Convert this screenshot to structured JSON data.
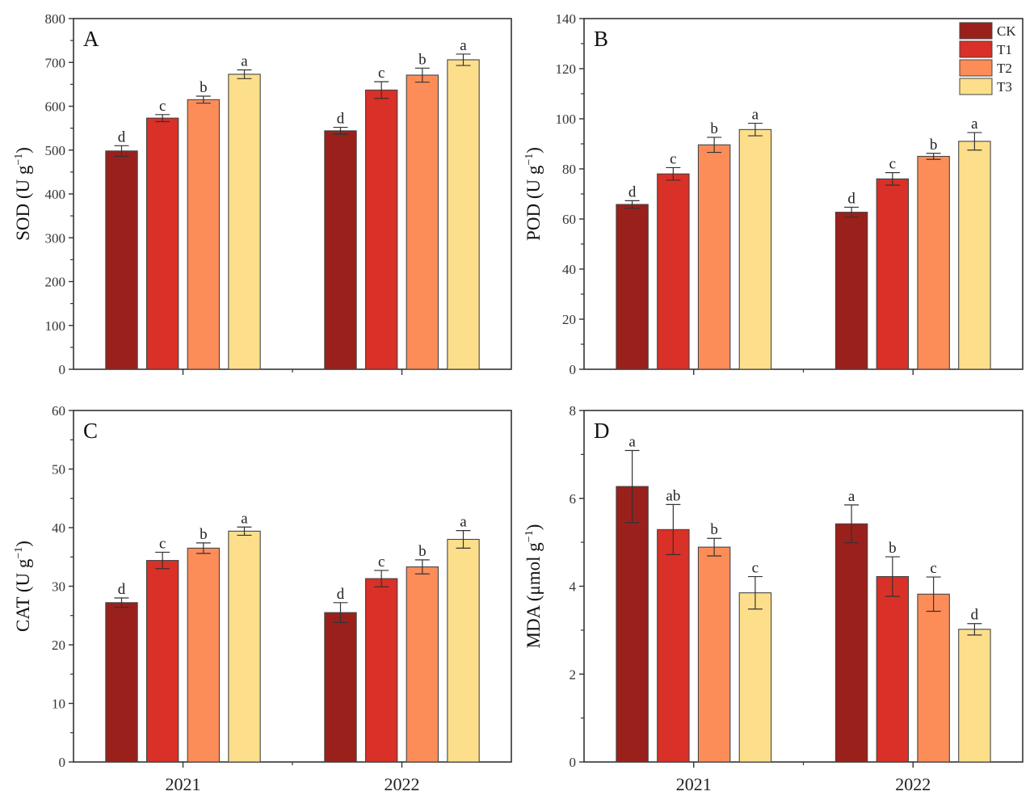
{
  "legend": {
    "entries": [
      {
        "name": "CK",
        "color": "#9a201b"
      },
      {
        "name": "T1",
        "color": "#d93027"
      },
      {
        "name": "T2",
        "color": "#fc8d59"
      },
      {
        "name": "T3",
        "color": "#fddf8b"
      }
    ],
    "placement": "top-right of panel B"
  },
  "chart_data": [
    {
      "type": "bar",
      "panel": "A",
      "title": "",
      "xlabel": "",
      "ylabel_main": "SOD (U g",
      "ylabel_sup": "−1",
      "ylabel_end": ")",
      "categories": [
        "2021",
        "2022"
      ],
      "show_x_tick_labels": false,
      "ylim": [
        0,
        800
      ],
      "y_ticks": [
        0,
        100,
        200,
        300,
        400,
        500,
        600,
        700,
        800
      ],
      "y_tick_labels": [
        "0",
        "100",
        "200",
        "300",
        "400",
        "500",
        "600",
        "700",
        "800"
      ],
      "y_minor_step": 50,
      "series": [
        {
          "name": "CK",
          "values": [
            498,
            544
          ],
          "errors": [
            12,
            8
          ],
          "letters": [
            "d",
            "d"
          ]
        },
        {
          "name": "T1",
          "values": [
            573,
            637
          ],
          "errors": [
            8,
            19
          ],
          "letters": [
            "c",
            "c"
          ]
        },
        {
          "name": "T2",
          "values": [
            615,
            671
          ],
          "errors": [
            8,
            16
          ],
          "letters": [
            "b",
            "b"
          ]
        },
        {
          "name": "T3",
          "values": [
            673,
            706
          ],
          "errors": [
            10,
            13
          ],
          "letters": [
            "a",
            "a"
          ]
        }
      ]
    },
    {
      "type": "bar",
      "panel": "B",
      "title": "",
      "xlabel": "",
      "ylabel_main": "POD (U g",
      "ylabel_sup": "−1",
      "ylabel_end": ")",
      "categories": [
        "2021",
        "2022"
      ],
      "show_x_tick_labels": false,
      "ylim": [
        0,
        140
      ],
      "y_ticks": [
        0,
        20,
        40,
        60,
        80,
        100,
        120,
        140
      ],
      "y_tick_labels": [
        "0",
        "20",
        "40",
        "60",
        "80",
        "100",
        "120",
        "140"
      ],
      "y_minor_step": 10,
      "series": [
        {
          "name": "CK",
          "values": [
            65.8,
            62.7
          ],
          "errors": [
            1.5,
            2.0
          ],
          "letters": [
            "d",
            "d"
          ]
        },
        {
          "name": "T1",
          "values": [
            78.0,
            76.0
          ],
          "errors": [
            2.5,
            2.5
          ],
          "letters": [
            "c",
            "c"
          ]
        },
        {
          "name": "T2",
          "values": [
            89.6,
            85.0
          ],
          "errors": [
            3.0,
            1.2
          ],
          "letters": [
            "b",
            "b"
          ]
        },
        {
          "name": "T3",
          "values": [
            95.7,
            91.0
          ],
          "errors": [
            2.5,
            3.5
          ],
          "letters": [
            "a",
            "a"
          ]
        }
      ]
    },
    {
      "type": "bar",
      "panel": "C",
      "title": "",
      "xlabel": "",
      "ylabel_main": "CAT (U g",
      "ylabel_sup": "−1",
      "ylabel_end": ")",
      "categories": [
        "2021",
        "2022"
      ],
      "show_x_tick_labels": true,
      "ylim": [
        0,
        60
      ],
      "y_ticks": [
        0,
        10,
        20,
        30,
        40,
        50,
        60
      ],
      "y_tick_labels": [
        "0",
        "10",
        "20",
        "30",
        "40",
        "50",
        "60"
      ],
      "y_minor_step": 5,
      "series": [
        {
          "name": "CK",
          "values": [
            27.2,
            25.5
          ],
          "errors": [
            0.8,
            1.7
          ],
          "letters": [
            "d",
            "d"
          ]
        },
        {
          "name": "T1",
          "values": [
            34.4,
            31.3
          ],
          "errors": [
            1.4,
            1.4
          ],
          "letters": [
            "c",
            "c"
          ]
        },
        {
          "name": "T2",
          "values": [
            36.5,
            33.3
          ],
          "errors": [
            0.9,
            1.2
          ],
          "letters": [
            "b",
            "b"
          ]
        },
        {
          "name": "T3",
          "values": [
            39.4,
            38.0
          ],
          "errors": [
            0.7,
            1.5
          ],
          "letters": [
            "a",
            "a"
          ]
        }
      ]
    },
    {
      "type": "bar",
      "panel": "D",
      "title": "",
      "xlabel": "",
      "ylabel_main": "MDA (μmol g",
      "ylabel_sup": "−1",
      "ylabel_end": ")",
      "categories": [
        "2021",
        "2022"
      ],
      "show_x_tick_labels": true,
      "ylim": [
        0,
        8
      ],
      "y_ticks": [
        0,
        2,
        4,
        6,
        8
      ],
      "y_tick_labels": [
        "0",
        "2",
        "4",
        "6",
        "8"
      ],
      "y_minor_step": 1,
      "series": [
        {
          "name": "CK",
          "values": [
            6.27,
            5.42
          ],
          "errors": [
            0.82,
            0.43
          ],
          "letters": [
            "a",
            "a"
          ]
        },
        {
          "name": "T1",
          "values": [
            5.29,
            4.22
          ],
          "errors": [
            0.57,
            0.45
          ],
          "letters": [
            "ab",
            "b"
          ]
        },
        {
          "name": "T2",
          "values": [
            4.89,
            3.82
          ],
          "errors": [
            0.2,
            0.39
          ],
          "letters": [
            "b",
            "c"
          ]
        },
        {
          "name": "T3",
          "values": [
            3.85,
            3.02
          ],
          "errors": [
            0.37,
            0.13
          ],
          "letters": [
            "c",
            "d"
          ]
        }
      ]
    }
  ]
}
